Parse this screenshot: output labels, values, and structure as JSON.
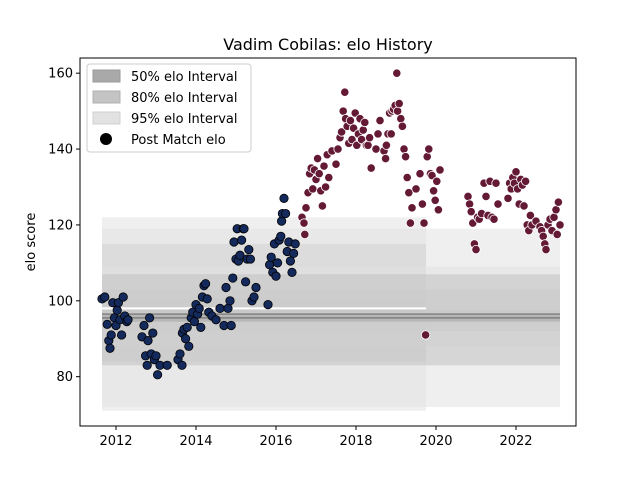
{
  "chart_data": {
    "type": "scatter",
    "title": "Vadim Cobilas: elo History",
    "xlabel": "",
    "ylabel": "elo score",
    "xlim": [
      2011.1,
      2023.5
    ],
    "ylim": [
      67,
      164
    ],
    "x_ticks": [
      2012,
      2014,
      2016,
      2018,
      2020,
      2022
    ],
    "y_ticks": [
      80,
      100,
      120,
      140,
      160
    ],
    "legend": {
      "placement": "top-left",
      "entries": [
        "50% elo Interval",
        "80% elo Interval",
        "95% elo Interval",
        "Post Match elo"
      ]
    },
    "colors": {
      "band50": "#a9a9a9",
      "band80": "#c4c4c4",
      "band95": "#e2e2e2",
      "early_points": "#142a5c",
      "late_points": "#641a35",
      "median_line": "#808080"
    },
    "bands": [
      {
        "start": 2011.65,
        "end": 2019.75,
        "median": 98.0,
        "p50": [
          96.5,
          100.5
        ],
        "p80": [
          84,
          115
        ],
        "p95": [
          71,
          122
        ]
      },
      {
        "start": 2011.65,
        "end": 2023.1,
        "median": 96.5,
        "p50": [
          95.5,
          97.5
        ],
        "p80": [
          92,
          103
        ],
        "p95": [
          88,
          109
        ]
      },
      {
        "start": 2011.65,
        "end": 2023.1,
        "median": 95.5,
        "p50": [
          94.5,
          96.2
        ],
        "p80": [
          83,
          107
        ],
        "p95": [
          72,
          119
        ]
      }
    ],
    "series": [
      {
        "name": "Post Match elo",
        "values_early": [
          [
            2011.65,
            100.5
          ],
          [
            2011.72,
            101
          ],
          [
            2011.78,
            93.8
          ],
          [
            2011.82,
            89.5
          ],
          [
            2011.85,
            87.5
          ],
          [
            2011.88,
            91
          ],
          [
            2011.92,
            99.5
          ],
          [
            2011.96,
            95.5
          ],
          [
            2012.0,
            93.5
          ],
          [
            2012.03,
            97.5
          ],
          [
            2012.06,
            99.5
          ],
          [
            2012.1,
            95
          ],
          [
            2012.14,
            91
          ],
          [
            2012.18,
            101
          ],
          [
            2012.22,
            96
          ],
          [
            2012.27,
            94.5
          ],
          [
            2012.3,
            95
          ],
          [
            2012.65,
            90.5
          ],
          [
            2012.7,
            93.5
          ],
          [
            2012.74,
            85.5
          ],
          [
            2012.78,
            83
          ],
          [
            2012.8,
            89.5
          ],
          [
            2012.84,
            95.5
          ],
          [
            2012.88,
            86
          ],
          [
            2012.92,
            91.5
          ],
          [
            2012.96,
            84.5
          ],
          [
            2013.0,
            85.5
          ],
          [
            2013.04,
            80.5
          ],
          [
            2013.1,
            83
          ],
          [
            2013.28,
            83
          ],
          [
            2013.55,
            84.5
          ],
          [
            2013.6,
            86
          ],
          [
            2013.65,
            83
          ],
          [
            2013.66,
            91.5
          ],
          [
            2013.7,
            92.5
          ],
          [
            2013.74,
            90
          ],
          [
            2013.78,
            93
          ],
          [
            2013.82,
            88
          ],
          [
            2013.88,
            95.5
          ],
          [
            2013.92,
            97
          ],
          [
            2013.96,
            94.5
          ],
          [
            2014.0,
            99
          ],
          [
            2014.04,
            96.5
          ],
          [
            2014.08,
            98
          ],
          [
            2014.12,
            93
          ],
          [
            2014.16,
            101
          ],
          [
            2014.2,
            104
          ],
          [
            2014.24,
            104.5
          ],
          [
            2014.28,
            100.5
          ],
          [
            2014.32,
            97
          ],
          [
            2014.4,
            96
          ],
          [
            2014.5,
            95
          ],
          [
            2014.6,
            98
          ],
          [
            2014.7,
            93.5
          ],
          [
            2014.75,
            103.5
          ],
          [
            2014.8,
            98
          ],
          [
            2014.85,
            100
          ],
          [
            2014.88,
            93.5
          ],
          [
            2014.92,
            106
          ],
          [
            2014.95,
            115.5
          ],
          [
            2015.0,
            111
          ],
          [
            2015.03,
            119
          ],
          [
            2015.06,
            110.5
          ],
          [
            2015.1,
            112
          ],
          [
            2015.14,
            116
          ],
          [
            2015.18,
            119
          ],
          [
            2015.2,
            119
          ],
          [
            2015.24,
            105
          ],
          [
            2015.28,
            111
          ],
          [
            2015.32,
            113.5
          ],
          [
            2015.36,
            111
          ],
          [
            2015.4,
            100
          ],
          [
            2015.45,
            101
          ],
          [
            2015.5,
            103.5
          ],
          [
            2015.8,
            99
          ],
          [
            2015.84,
            109.5
          ],
          [
            2015.88,
            111.5
          ],
          [
            2015.92,
            107.5
          ],
          [
            2015.96,
            115
          ],
          [
            2016.0,
            106.5
          ],
          [
            2016.04,
            110
          ],
          [
            2016.08,
            116
          ],
          [
            2016.12,
            117
          ],
          [
            2016.14,
            121
          ],
          [
            2016.16,
            123
          ],
          [
            2016.2,
            127
          ],
          [
            2016.24,
            123
          ],
          [
            2016.28,
            113
          ],
          [
            2016.32,
            115.5
          ],
          [
            2016.36,
            110.5
          ],
          [
            2016.4,
            107.5
          ],
          [
            2016.44,
            112.5
          ],
          [
            2016.48,
            115
          ]
        ],
        "values_late": [
          [
            2016.65,
            122
          ],
          [
            2016.7,
            120.5
          ],
          [
            2016.72,
            117.5
          ],
          [
            2016.75,
            124.5
          ],
          [
            2016.8,
            128.5
          ],
          [
            2016.84,
            133.5
          ],
          [
            2016.88,
            135
          ],
          [
            2016.92,
            129.5
          ],
          [
            2016.96,
            134.5
          ],
          [
            2017.0,
            132
          ],
          [
            2017.04,
            137.5
          ],
          [
            2017.08,
            133.5
          ],
          [
            2017.12,
            129
          ],
          [
            2017.16,
            125
          ],
          [
            2017.2,
            135.5
          ],
          [
            2017.24,
            130
          ],
          [
            2017.28,
            138.5
          ],
          [
            2017.32,
            132.5
          ],
          [
            2017.4,
            139.5
          ],
          [
            2017.5,
            136
          ],
          [
            2017.55,
            140
          ],
          [
            2017.6,
            143
          ],
          [
            2017.64,
            144.5
          ],
          [
            2017.68,
            150
          ],
          [
            2017.72,
            155
          ],
          [
            2017.74,
            148
          ],
          [
            2017.78,
            146
          ],
          [
            2017.82,
            141.5
          ],
          [
            2017.86,
            147.5
          ],
          [
            2017.9,
            142.5
          ],
          [
            2017.94,
            145.5
          ],
          [
            2017.98,
            149.5
          ],
          [
            2018.02,
            141
          ],
          [
            2018.06,
            144
          ],
          [
            2018.1,
            148
          ],
          [
            2018.14,
            142.5
          ],
          [
            2018.18,
            145
          ],
          [
            2018.22,
            147
          ],
          [
            2018.26,
            141
          ],
          [
            2018.3,
            141
          ],
          [
            2018.34,
            143
          ],
          [
            2018.38,
            135
          ],
          [
            2018.5,
            140
          ],
          [
            2018.55,
            144
          ],
          [
            2018.6,
            147.5
          ],
          [
            2018.7,
            139.5
          ],
          [
            2018.74,
            137.5
          ],
          [
            2018.76,
            141
          ],
          [
            2018.8,
            144
          ],
          [
            2018.84,
            149.5
          ],
          [
            2018.88,
            144
          ],
          [
            2018.9,
            150
          ],
          [
            2018.94,
            150.5
          ],
          [
            2018.98,
            151.5
          ],
          [
            2019.02,
            160
          ],
          [
            2019.04,
            150
          ],
          [
            2019.08,
            152
          ],
          [
            2019.12,
            148
          ],
          [
            2019.16,
            146
          ],
          [
            2019.2,
            140
          ],
          [
            2019.24,
            138
          ],
          [
            2019.28,
            132.5
          ],
          [
            2019.32,
            128.5
          ],
          [
            2019.36,
            120.5
          ],
          [
            2019.4,
            124.5
          ],
          [
            2019.5,
            129.5
          ],
          [
            2019.6,
            133.5
          ],
          [
            2019.66,
            125.5
          ],
          [
            2019.7,
            120.5
          ],
          [
            2019.74,
            91
          ],
          [
            2019.78,
            138
          ],
          [
            2019.82,
            140
          ],
          [
            2019.86,
            133.5
          ],
          [
            2019.9,
            133
          ],
          [
            2019.94,
            129
          ],
          [
            2019.98,
            126.5
          ],
          [
            2020.02,
            131.5
          ],
          [
            2020.06,
            124
          ],
          [
            2020.1,
            134.5
          ],
          [
            2020.8,
            127.5
          ],
          [
            2020.84,
            125.5
          ],
          [
            2020.88,
            123.5
          ],
          [
            2020.92,
            120.5
          ],
          [
            2020.96,
            115
          ],
          [
            2021.0,
            113.5
          ],
          [
            2021.04,
            122
          ],
          [
            2021.08,
            121.5
          ],
          [
            2021.14,
            123
          ],
          [
            2021.2,
            131
          ],
          [
            2021.25,
            127.5
          ],
          [
            2021.3,
            122.5
          ],
          [
            2021.35,
            131.5
          ],
          [
            2021.4,
            122
          ],
          [
            2021.45,
            121.5
          ],
          [
            2021.5,
            131
          ],
          [
            2021.55,
            125.5
          ],
          [
            2021.8,
            127
          ],
          [
            2021.84,
            131
          ],
          [
            2021.88,
            129.5
          ],
          [
            2021.92,
            132.5
          ],
          [
            2021.96,
            131
          ],
          [
            2022.0,
            134
          ],
          [
            2022.04,
            129.5
          ],
          [
            2022.08,
            125.5
          ],
          [
            2022.12,
            132
          ],
          [
            2022.16,
            130.5
          ],
          [
            2022.2,
            125
          ],
          [
            2022.24,
            131.5
          ],
          [
            2022.28,
            120
          ],
          [
            2022.32,
            118.5
          ],
          [
            2022.36,
            122.5
          ],
          [
            2022.4,
            120
          ],
          [
            2022.5,
            121
          ],
          [
            2022.6,
            119.5
          ],
          [
            2022.64,
            118.5
          ],
          [
            2022.68,
            117
          ],
          [
            2022.72,
            115
          ],
          [
            2022.75,
            113.5
          ],
          [
            2022.8,
            120
          ],
          [
            2022.85,
            121.5
          ],
          [
            2022.9,
            118.5
          ],
          [
            2022.95,
            122
          ],
          [
            2023.0,
            124
          ],
          [
            2023.03,
            117.5
          ],
          [
            2023.06,
            126
          ],
          [
            2023.1,
            120
          ]
        ]
      }
    ]
  }
}
